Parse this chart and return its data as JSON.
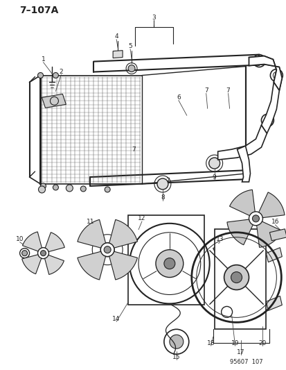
{
  "title": "7–107A",
  "background_color": "#ffffff",
  "line_color": "#222222",
  "footer": "95607  107",
  "fig_width": 4.14,
  "fig_height": 5.33,
  "dpi": 100
}
